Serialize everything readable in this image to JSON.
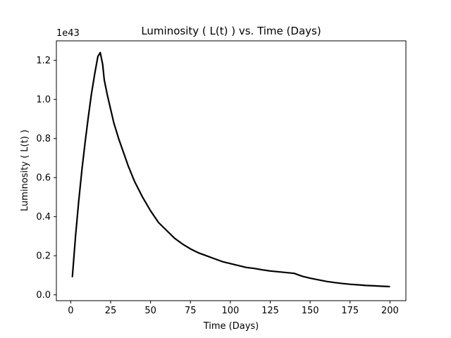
{
  "chart_data": {
    "type": "line",
    "title": "Luminosity ( L(t) ) vs. Time (Days)",
    "xlabel": "Time (Days)",
    "ylabel": "Luminosity ( L(t) )",
    "y_offset_label": "1e43",
    "xlim": [
      -9,
      210
    ],
    "ylim": [
      -0.03,
      1.3
    ],
    "xticks": [
      0,
      25,
      50,
      75,
      100,
      125,
      150,
      175,
      200
    ],
    "xtick_labels": [
      "0",
      "25",
      "50",
      "75",
      "100",
      "125",
      "150",
      "175",
      "200"
    ],
    "yticks": [
      0.0,
      0.2,
      0.4,
      0.6,
      0.8,
      1.0,
      1.2
    ],
    "ytick_labels": [
      "0.0",
      "0.2",
      "0.4",
      "0.6",
      "0.8",
      "1.0",
      "1.2"
    ],
    "grid": false,
    "line_color": "#000000",
    "series": [
      {
        "x": [
          1,
          3,
          5,
          7,
          9,
          11,
          13,
          15,
          17,
          18.5,
          20,
          21,
          23,
          25,
          27,
          30,
          33,
          36,
          40,
          45,
          50,
          55,
          60,
          65,
          70,
          75,
          80,
          85,
          90,
          95,
          100,
          105,
          110,
          115,
          120,
          125,
          130,
          135,
          140,
          145,
          150,
          155,
          160,
          165,
          170,
          175,
          180,
          185,
          190,
          195,
          200
        ],
        "y": [
          0.09,
          0.3,
          0.48,
          0.64,
          0.78,
          0.91,
          1.03,
          1.13,
          1.22,
          1.24,
          1.18,
          1.1,
          1.02,
          0.95,
          0.88,
          0.8,
          0.73,
          0.66,
          0.58,
          0.5,
          0.43,
          0.37,
          0.33,
          0.29,
          0.26,
          0.235,
          0.215,
          0.2,
          0.185,
          0.17,
          0.16,
          0.15,
          0.14,
          0.135,
          0.128,
          0.122,
          0.118,
          0.114,
          0.11,
          0.095,
          0.085,
          0.077,
          0.069,
          0.063,
          0.058,
          0.054,
          0.051,
          0.048,
          0.046,
          0.044,
          0.042
        ]
      }
    ]
  }
}
